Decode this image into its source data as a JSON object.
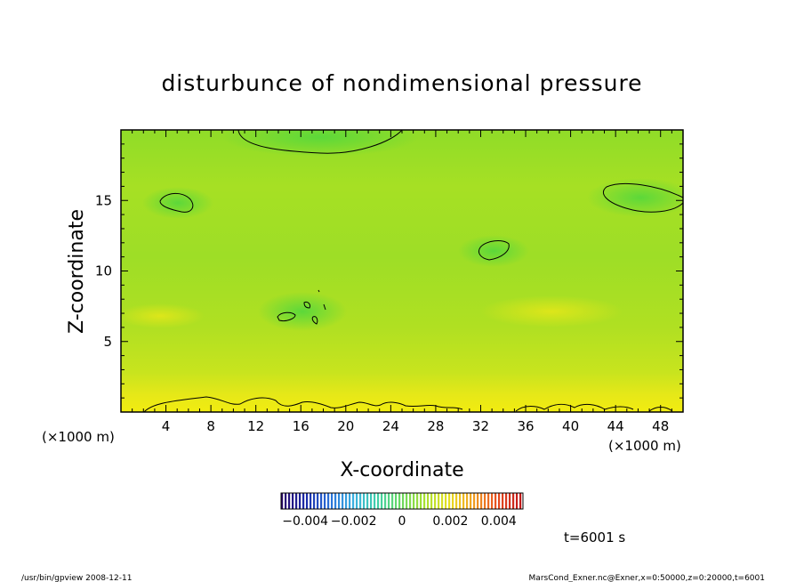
{
  "chart_data": {
    "type": "heatmap",
    "title": "disturbunce of nondimensional pressure",
    "xlabel": "X-coordinate",
    "ylabel": "Z-coordinate",
    "x_unit_left": "(×1000 m)",
    "x_unit_right": "(×1000 m)",
    "xlim": [
      0,
      50
    ],
    "ylim": [
      0,
      20
    ],
    "x_ticks": [
      "4",
      "8",
      "12",
      "16",
      "20",
      "24",
      "28",
      "32",
      "36",
      "40",
      "44",
      "48"
    ],
    "x_tick_values": [
      4,
      8,
      12,
      16,
      20,
      24,
      28,
      32,
      36,
      40,
      44,
      48
    ],
    "y_ticks": [
      "5",
      "10",
      "15"
    ],
    "y_tick_values": [
      5,
      10,
      15
    ],
    "colorbar": {
      "min": -0.005,
      "max": 0.005,
      "tick_labels": [
        "−0.004",
        "−0.002",
        "0",
        "0.002",
        "0.004"
      ],
      "tick_values": [
        -0.004,
        -0.002,
        0,
        0.002,
        0.004
      ],
      "colors": [
        "#2a0a6a",
        "#1a2aa8",
        "#2a70d8",
        "#3ab0e0",
        "#40d0a8",
        "#6ad860",
        "#a8e030",
        "#e8e020",
        "#f0a020",
        "#e85020",
        "#c01818"
      ]
    },
    "time_label": "t=6001 s",
    "field_colors": {
      "low": "#3ad840",
      "mid": "#8ee02a",
      "high": "#f2ec10"
    }
  },
  "footer": {
    "left": "/usr/bin/gpview   2008-12-11",
    "right": "MarsCond_Exner.nc@Exner,x=0:50000,z=0:20000,t=6001"
  }
}
